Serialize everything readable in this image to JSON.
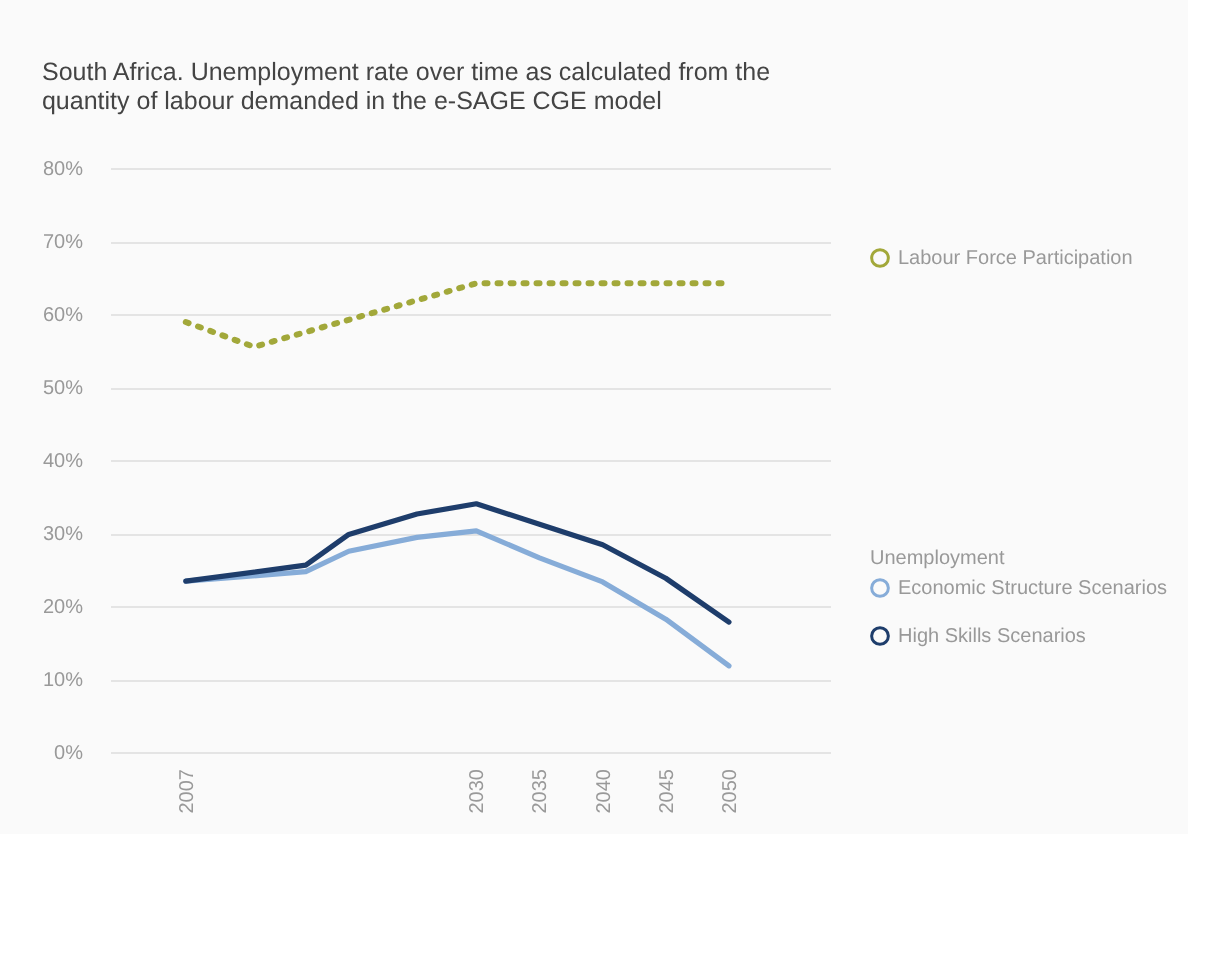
{
  "chart_data": {
    "type": "line",
    "title": "South Africa. Unemployment rate over time as calculated from the quantity of labour demanded in the e-SAGE CGE model",
    "legend_title": "Unemployment",
    "series": [
      {
        "name": "Labour Force Participation",
        "color": "#a2a83a",
        "line_style": "dotted",
        "x": [
          2007,
          2012.4,
          2030,
          2050
        ],
        "values": [
          58.9,
          55.5,
          64.2,
          64.2
        ]
      },
      {
        "name": "Economic Structure Scenarios",
        "color": "#86acd8",
        "line_style": "solid",
        "x": [
          2007,
          2016.5,
          2019.9,
          2025.3,
          2030,
          2035,
          2040,
          2045,
          2050
        ],
        "values": [
          23.4,
          24.7,
          27.5,
          29.4,
          30.3,
          26.6,
          23.3,
          18.2,
          11.8
        ]
      },
      {
        "name": "High Skills Scenarios",
        "color": "#1e3d6b",
        "line_style": "solid",
        "x": [
          2007,
          2016.5,
          2019.9,
          2025.3,
          2030,
          2035,
          2040,
          2045,
          2050
        ],
        "values": [
          23.4,
          25.6,
          29.8,
          32.6,
          34.0,
          31.2,
          28.4,
          23.8,
          17.8
        ]
      }
    ],
    "xlim": [
      2001,
      2058
    ],
    "xticks": [
      2007,
      2030,
      2035,
      2040,
      2045,
      2050
    ],
    "ylim": [
      0,
      80
    ],
    "yticks": [
      {
        "value": 0,
        "label": "0%"
      },
      {
        "value": 10,
        "label": "10%"
      },
      {
        "value": 20,
        "label": "20%"
      },
      {
        "value": 30,
        "label": "30%"
      },
      {
        "value": 40,
        "label": "40%"
      },
      {
        "value": 50,
        "label": "50%"
      },
      {
        "value": 60,
        "label": "60%"
      },
      {
        "value": 70,
        "label": "70%"
      },
      {
        "value": 80,
        "label": "80%"
      }
    ],
    "grid": "y",
    "legend": "right",
    "marker": "none"
  }
}
